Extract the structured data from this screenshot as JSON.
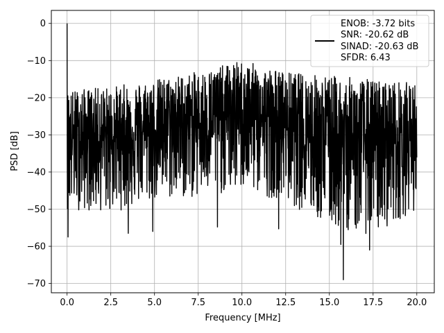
{
  "chart_data": {
    "type": "line",
    "title": "",
    "xlabel": "Frequency [MHz]",
    "ylabel": "PSD [dB]",
    "xlim": [
      -0.9,
      21.0
    ],
    "ylim": [
      -72.5,
      3.5
    ],
    "xticks": [
      0.0,
      2.5,
      5.0,
      7.5,
      10.0,
      12.5,
      15.0,
      17.5,
      20.0
    ],
    "xtick_labels": [
      "0.0",
      "2.5",
      "5.0",
      "7.5",
      "10.0",
      "12.5",
      "15.0",
      "17.5",
      "20.0"
    ],
    "yticks": [
      0,
      -10,
      -20,
      -30,
      -40,
      -50,
      -60,
      -70
    ],
    "ytick_labels": [
      "0",
      "−10",
      "−20",
      "−30",
      "−40",
      "−50",
      "−60",
      "−70"
    ],
    "grid": true,
    "legend_position": "upper-right",
    "line_color": "#000000",
    "legend_lines": [
      "ENOB: -3.72 bits",
      "SNR: -20.62 dB",
      "SINAD: -20.63 dB",
      "SFDR: 6.43"
    ],
    "series": [
      {
        "x_range": [
          0.0,
          20.0
        ],
        "peak": {
          "x": 0.0,
          "y": 0.0
        },
        "envelope_x": [
          0.0,
          2.5,
          5.0,
          7.5,
          10.0,
          12.5,
          15.0,
          17.5,
          20.0
        ],
        "upper_envelope": [
          -18,
          -17,
          -15,
          -13,
          -10,
          -13,
          -14,
          -15,
          -16
        ],
        "lower_envelope": [
          -50,
          -51,
          -48,
          -47,
          -45,
          -48,
          -55,
          -57,
          -50
        ],
        "deep_nulls": [
          {
            "x": 0.05,
            "y": -57.5
          },
          {
            "x": 3.5,
            "y": -56.5
          },
          {
            "x": 4.9,
            "y": -56
          },
          {
            "x": 8.6,
            "y": -54.8
          },
          {
            "x": 12.1,
            "y": -55.3
          },
          {
            "x": 15.65,
            "y": -59.5
          },
          {
            "x": 15.8,
            "y": -69
          },
          {
            "x": 16.95,
            "y": -60.8
          },
          {
            "x": 17.3,
            "y": -61
          }
        ]
      }
    ]
  }
}
